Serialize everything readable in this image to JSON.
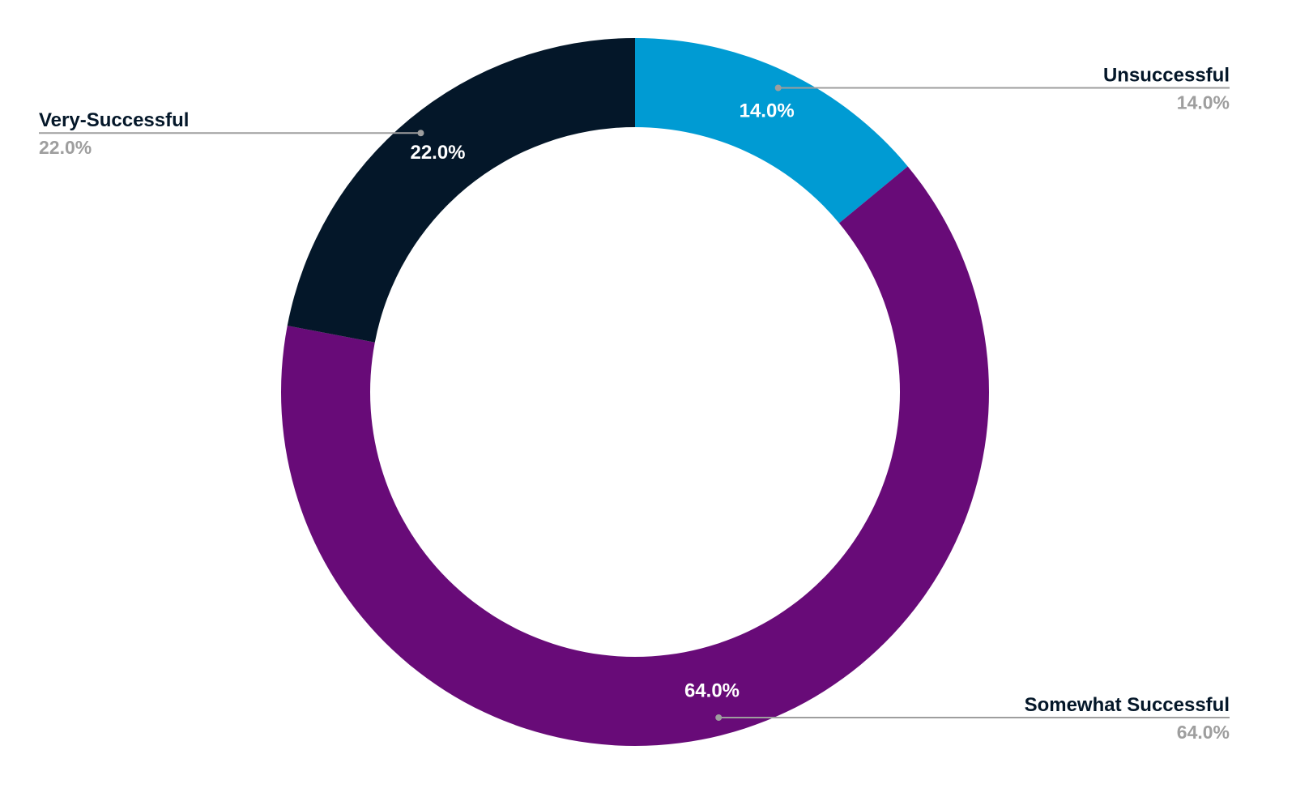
{
  "chart_data": {
    "type": "donut",
    "categories": [
      "Unsuccessful",
      "Somewhat Successful",
      "Very-Successful"
    ],
    "values": [
      14,
      64,
      22
    ],
    "value_labels": [
      "14.0%",
      "64.0%",
      "22.0%"
    ],
    "colors": [
      "#009bd3",
      "#680b78",
      "#041729"
    ]
  }
}
